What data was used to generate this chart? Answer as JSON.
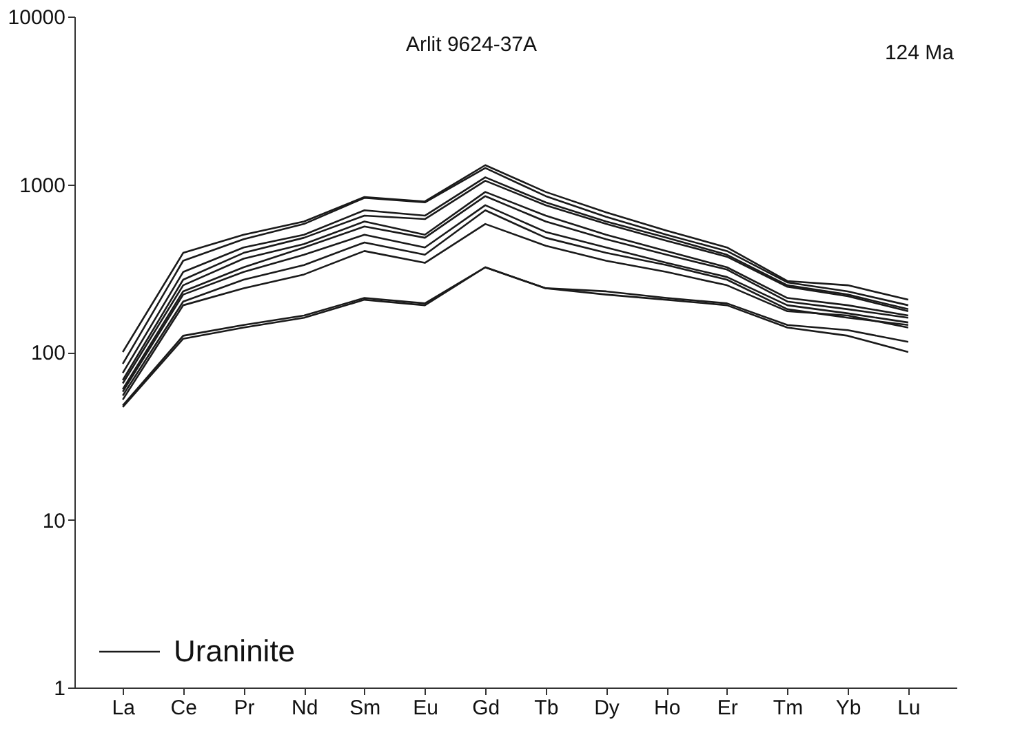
{
  "chart_data": {
    "type": "line",
    "annotations": [
      "Arlit 9624-37A",
      "124 Ma"
    ],
    "categories": [
      "La",
      "Ce",
      "Pr",
      "Nd",
      "Sm",
      "Eu",
      "Gd",
      "Tb",
      "Dy",
      "Ho",
      "Er",
      "Tm",
      "Yb",
      "Lu"
    ],
    "log": "y",
    "ylim": [
      1,
      10000
    ],
    "yticks": [
      1,
      10,
      100,
      1000,
      10000
    ],
    "grid": false,
    "legend": "bottom left",
    "marker": "none",
    "line_style": "solid",
    "series": [
      {
        "name": "Uraninite",
        "color": "#1a1a1a",
        "values": [
          100,
          390,
          500,
          600,
          840,
          790,
          1300,
          900,
          680,
          530,
          420,
          265,
          250,
          205
        ]
      },
      {
        "color": "#1a1a1a",
        "values": [
          85,
          350,
          470,
          580,
          830,
          780,
          1250,
          850,
          640,
          500,
          400,
          260,
          230,
          190
        ]
      },
      {
        "color": "#1a1a1a",
        "values": [
          75,
          300,
          420,
          500,
          700,
          650,
          1100,
          780,
          600,
          480,
          380,
          250,
          220,
          180
        ]
      },
      {
        "color": "#1a1a1a",
        "values": [
          68,
          270,
          390,
          480,
          650,
          620,
          1050,
          750,
          580,
          460,
          370,
          245,
          215,
          175
        ]
      },
      {
        "color": "#1a1a1a",
        "values": [
          65,
          250,
          360,
          440,
          600,
          500,
          900,
          650,
          500,
          400,
          320,
          210,
          190,
          165
        ]
      },
      {
        "color": "#1a1a1a",
        "values": [
          60,
          230,
          320,
          420,
          560,
          480,
          850,
          600,
          470,
          380,
          310,
          200,
          180,
          160
        ]
      },
      {
        "color": "#1a1a1a",
        "values": [
          58,
          220,
          300,
          380,
          500,
          420,
          750,
          520,
          420,
          340,
          280,
          190,
          170,
          150
        ]
      },
      {
        "color": "#1a1a1a",
        "values": [
          55,
          200,
          270,
          330,
          450,
          380,
          700,
          480,
          390,
          330,
          270,
          180,
          160,
          145
        ]
      },
      {
        "color": "#1a1a1a",
        "values": [
          52,
          190,
          240,
          290,
          400,
          340,
          580,
          430,
          350,
          300,
          250,
          175,
          165,
          140
        ]
      },
      {
        "color": "#1a1a1a",
        "values": [
          48,
          125,
          145,
          165,
          210,
          195,
          320,
          240,
          230,
          210,
          195,
          145,
          135,
          115
        ]
      },
      {
        "color": "#1a1a1a",
        "values": [
          47,
          120,
          140,
          160,
          205,
          190,
          320,
          240,
          220,
          205,
          190,
          140,
          125,
          100
        ]
      }
    ]
  }
}
